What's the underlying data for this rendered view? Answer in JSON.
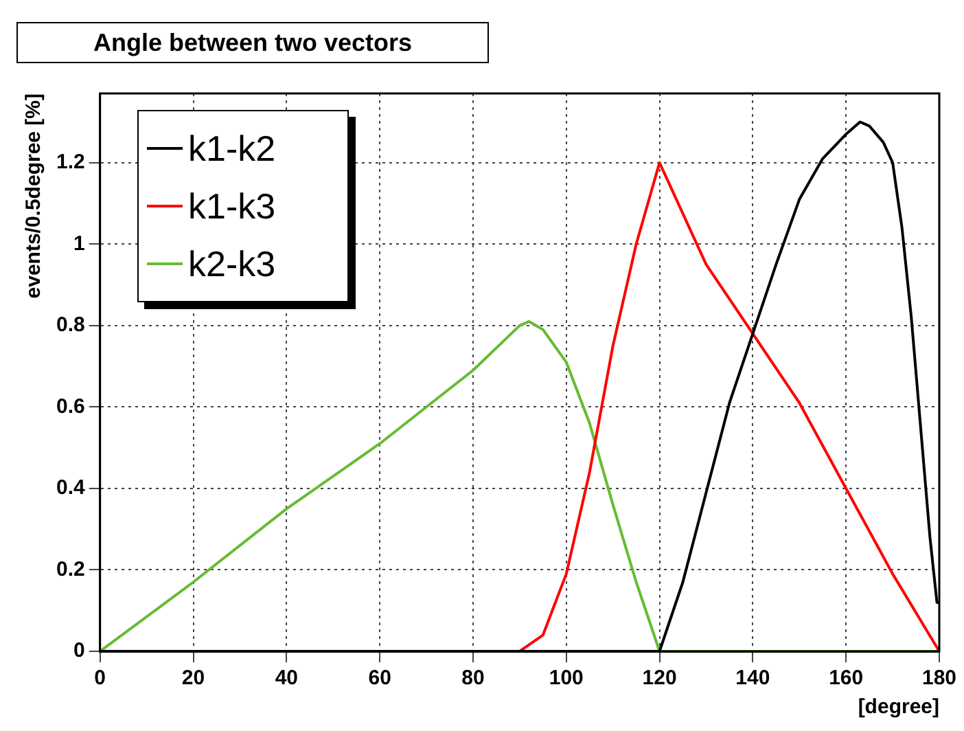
{
  "chart_data": {
    "type": "line",
    "title": "Angle between two vectors",
    "xlabel": "[degree]",
    "ylabel": "events/0.5degree [%]",
    "xlim": [
      0,
      180
    ],
    "xticks": [
      0,
      20,
      40,
      60,
      80,
      100,
      120,
      140,
      160,
      180
    ],
    "ylim": [
      0,
      1.37
    ],
    "yticks": [
      0,
      0.2,
      0.4,
      0.6,
      0.8,
      1,
      1.2
    ],
    "grid": true,
    "legend": "top left",
    "marker": "none",
    "line_style": "solid",
    "series": [
      {
        "name": "k1-k2",
        "color": "#000000",
        "x": [
          0,
          120,
          125,
          130,
          135,
          140,
          145,
          150,
          155,
          160,
          163,
          165,
          168,
          170,
          172,
          174,
          176,
          178,
          179.5,
          180
        ],
        "values": [
          0,
          0,
          0.17,
          0.39,
          0.61,
          0.78,
          0.95,
          1.11,
          1.21,
          1.27,
          1.3,
          1.29,
          1.25,
          1.2,
          1.04,
          0.82,
          0.55,
          0.28,
          0.12,
          0.12
        ]
      },
      {
        "name": "k1-k3",
        "color": "#ff0000",
        "x": [
          0,
          90,
          95,
          100,
          105,
          110,
          115,
          120,
          130,
          140,
          150,
          160,
          170,
          180
        ],
        "values": [
          0,
          0,
          0.04,
          0.19,
          0.44,
          0.75,
          1,
          1.2,
          0.95,
          0.78,
          0.61,
          0.4,
          0.19,
          0
        ]
      },
      {
        "name": "k2-k3",
        "color": "#66bb33",
        "x": [
          0,
          20,
          40,
          60,
          80,
          90,
          92,
          95,
          100,
          105,
          110,
          115,
          120,
          180
        ],
        "values": [
          0,
          0.17,
          0.35,
          0.51,
          0.69,
          0.8,
          0.81,
          0.79,
          0.71,
          0.56,
          0.36,
          0.17,
          0,
          0
        ]
      }
    ]
  }
}
